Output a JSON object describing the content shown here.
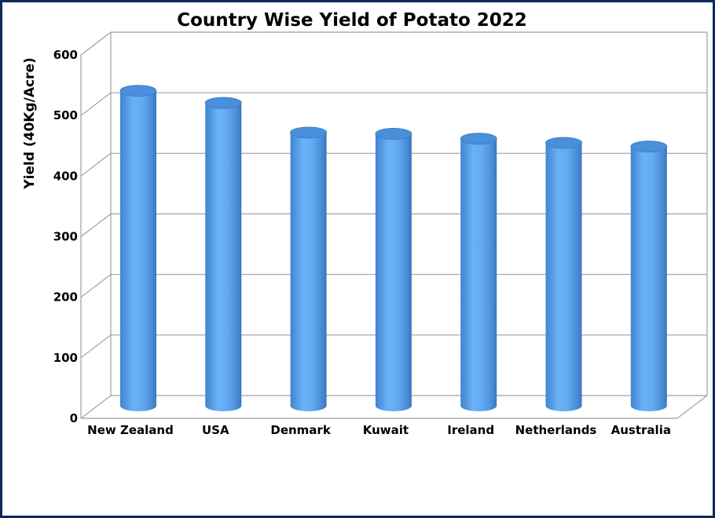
{
  "chart_data": {
    "type": "bar",
    "title": "Country Wise Yield of Potato 2022",
    "xlabel": "",
    "ylabel": "Yield (40Kg/Acre)",
    "categories": [
      "New Zealand",
      "USA",
      "Denmark",
      "Kuwait",
      "Ireland",
      "Netherlands",
      "Australia"
    ],
    "values": [
      520,
      500,
      451,
      449,
      441,
      434,
      428
    ],
    "ylim": [
      0,
      600
    ],
    "yticks": [
      0,
      100,
      200,
      300,
      400,
      500,
      600
    ],
    "grid": true,
    "legend": "none",
    "bar_color": "#5aa5f0",
    "style": "3d-cylinder"
  }
}
